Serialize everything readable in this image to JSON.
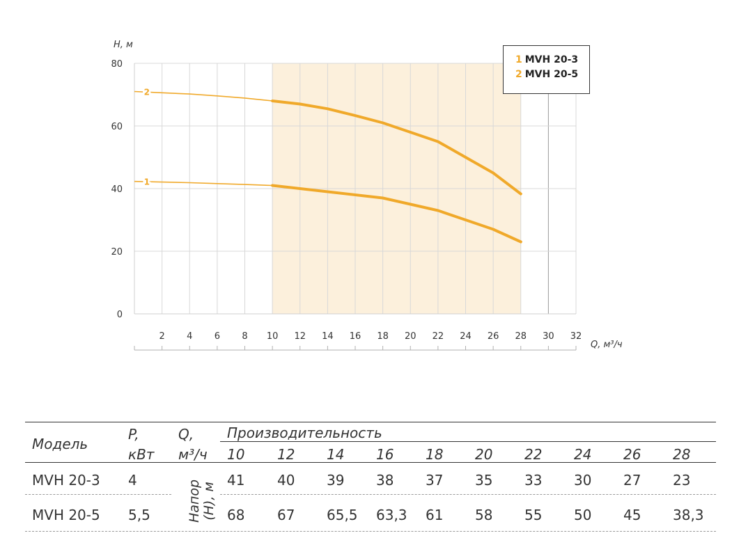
{
  "chart_data": {
    "type": "line",
    "title": "",
    "xlabel": "Q, м³/ч",
    "ylabel": "H, м",
    "xlim": [
      0,
      32
    ],
    "ylim": [
      0,
      80
    ],
    "x_ticks": [
      "2",
      "4",
      "6",
      "8",
      "10",
      "12",
      "14",
      "16",
      "18",
      "20",
      "22",
      "24",
      "26",
      "28",
      "30",
      "32"
    ],
    "y_ticks": [
      "0",
      "20",
      "40",
      "60",
      "80"
    ],
    "operating_range": [
      10,
      28
    ],
    "grid": true,
    "legend_position": "top-right",
    "series": [
      {
        "name": "MVH 20-3",
        "marker": "1",
        "x": [
          0,
          2,
          4,
          6,
          8,
          10,
          12,
          14,
          16,
          18,
          20,
          22,
          24,
          26,
          28
        ],
        "y": [
          42.3,
          42.1,
          41.9,
          41.6,
          41.3,
          41,
          40,
          39,
          38,
          37,
          35,
          33,
          30,
          27,
          23
        ]
      },
      {
        "name": "MVH 20-5",
        "marker": "2",
        "x": [
          0,
          2,
          4,
          6,
          8,
          10,
          12,
          14,
          16,
          18,
          20,
          22,
          24,
          26,
          28
        ],
        "y": [
          71,
          70.6,
          70.2,
          69.6,
          68.9,
          68,
          67,
          65.5,
          63.3,
          61,
          58,
          55,
          50,
          45,
          38.3
        ]
      }
    ],
    "colors": {
      "line": "#F0A92A",
      "range_fill": "#FCF0DC",
      "grid": "#D8D8D8"
    }
  },
  "legend": [
    {
      "num": "1",
      "label": "MVH 20-3"
    },
    {
      "num": "2",
      "label": "MVH 20-5"
    }
  ],
  "table": {
    "h_model": "Модель",
    "h_power_1": "P,",
    "h_power_2": "кВт",
    "h_q_1": "Q,",
    "h_q_2": "м³/ч",
    "h_perf": "Производительность",
    "h_head": "Напор (H), м",
    "flows": [
      "10",
      "12",
      "14",
      "16",
      "18",
      "20",
      "22",
      "24",
      "26",
      "28"
    ],
    "rows": [
      {
        "model": "MVH 20-3",
        "power": "4",
        "values": [
          "41",
          "40",
          "39",
          "38",
          "37",
          "35",
          "33",
          "30",
          "27",
          "23"
        ]
      },
      {
        "model": "MVH 20-5",
        "power": "5,5",
        "values": [
          "68",
          "67",
          "65,5",
          "63,3",
          "61",
          "58",
          "55",
          "50",
          "45",
          "38,3"
        ]
      }
    ]
  }
}
